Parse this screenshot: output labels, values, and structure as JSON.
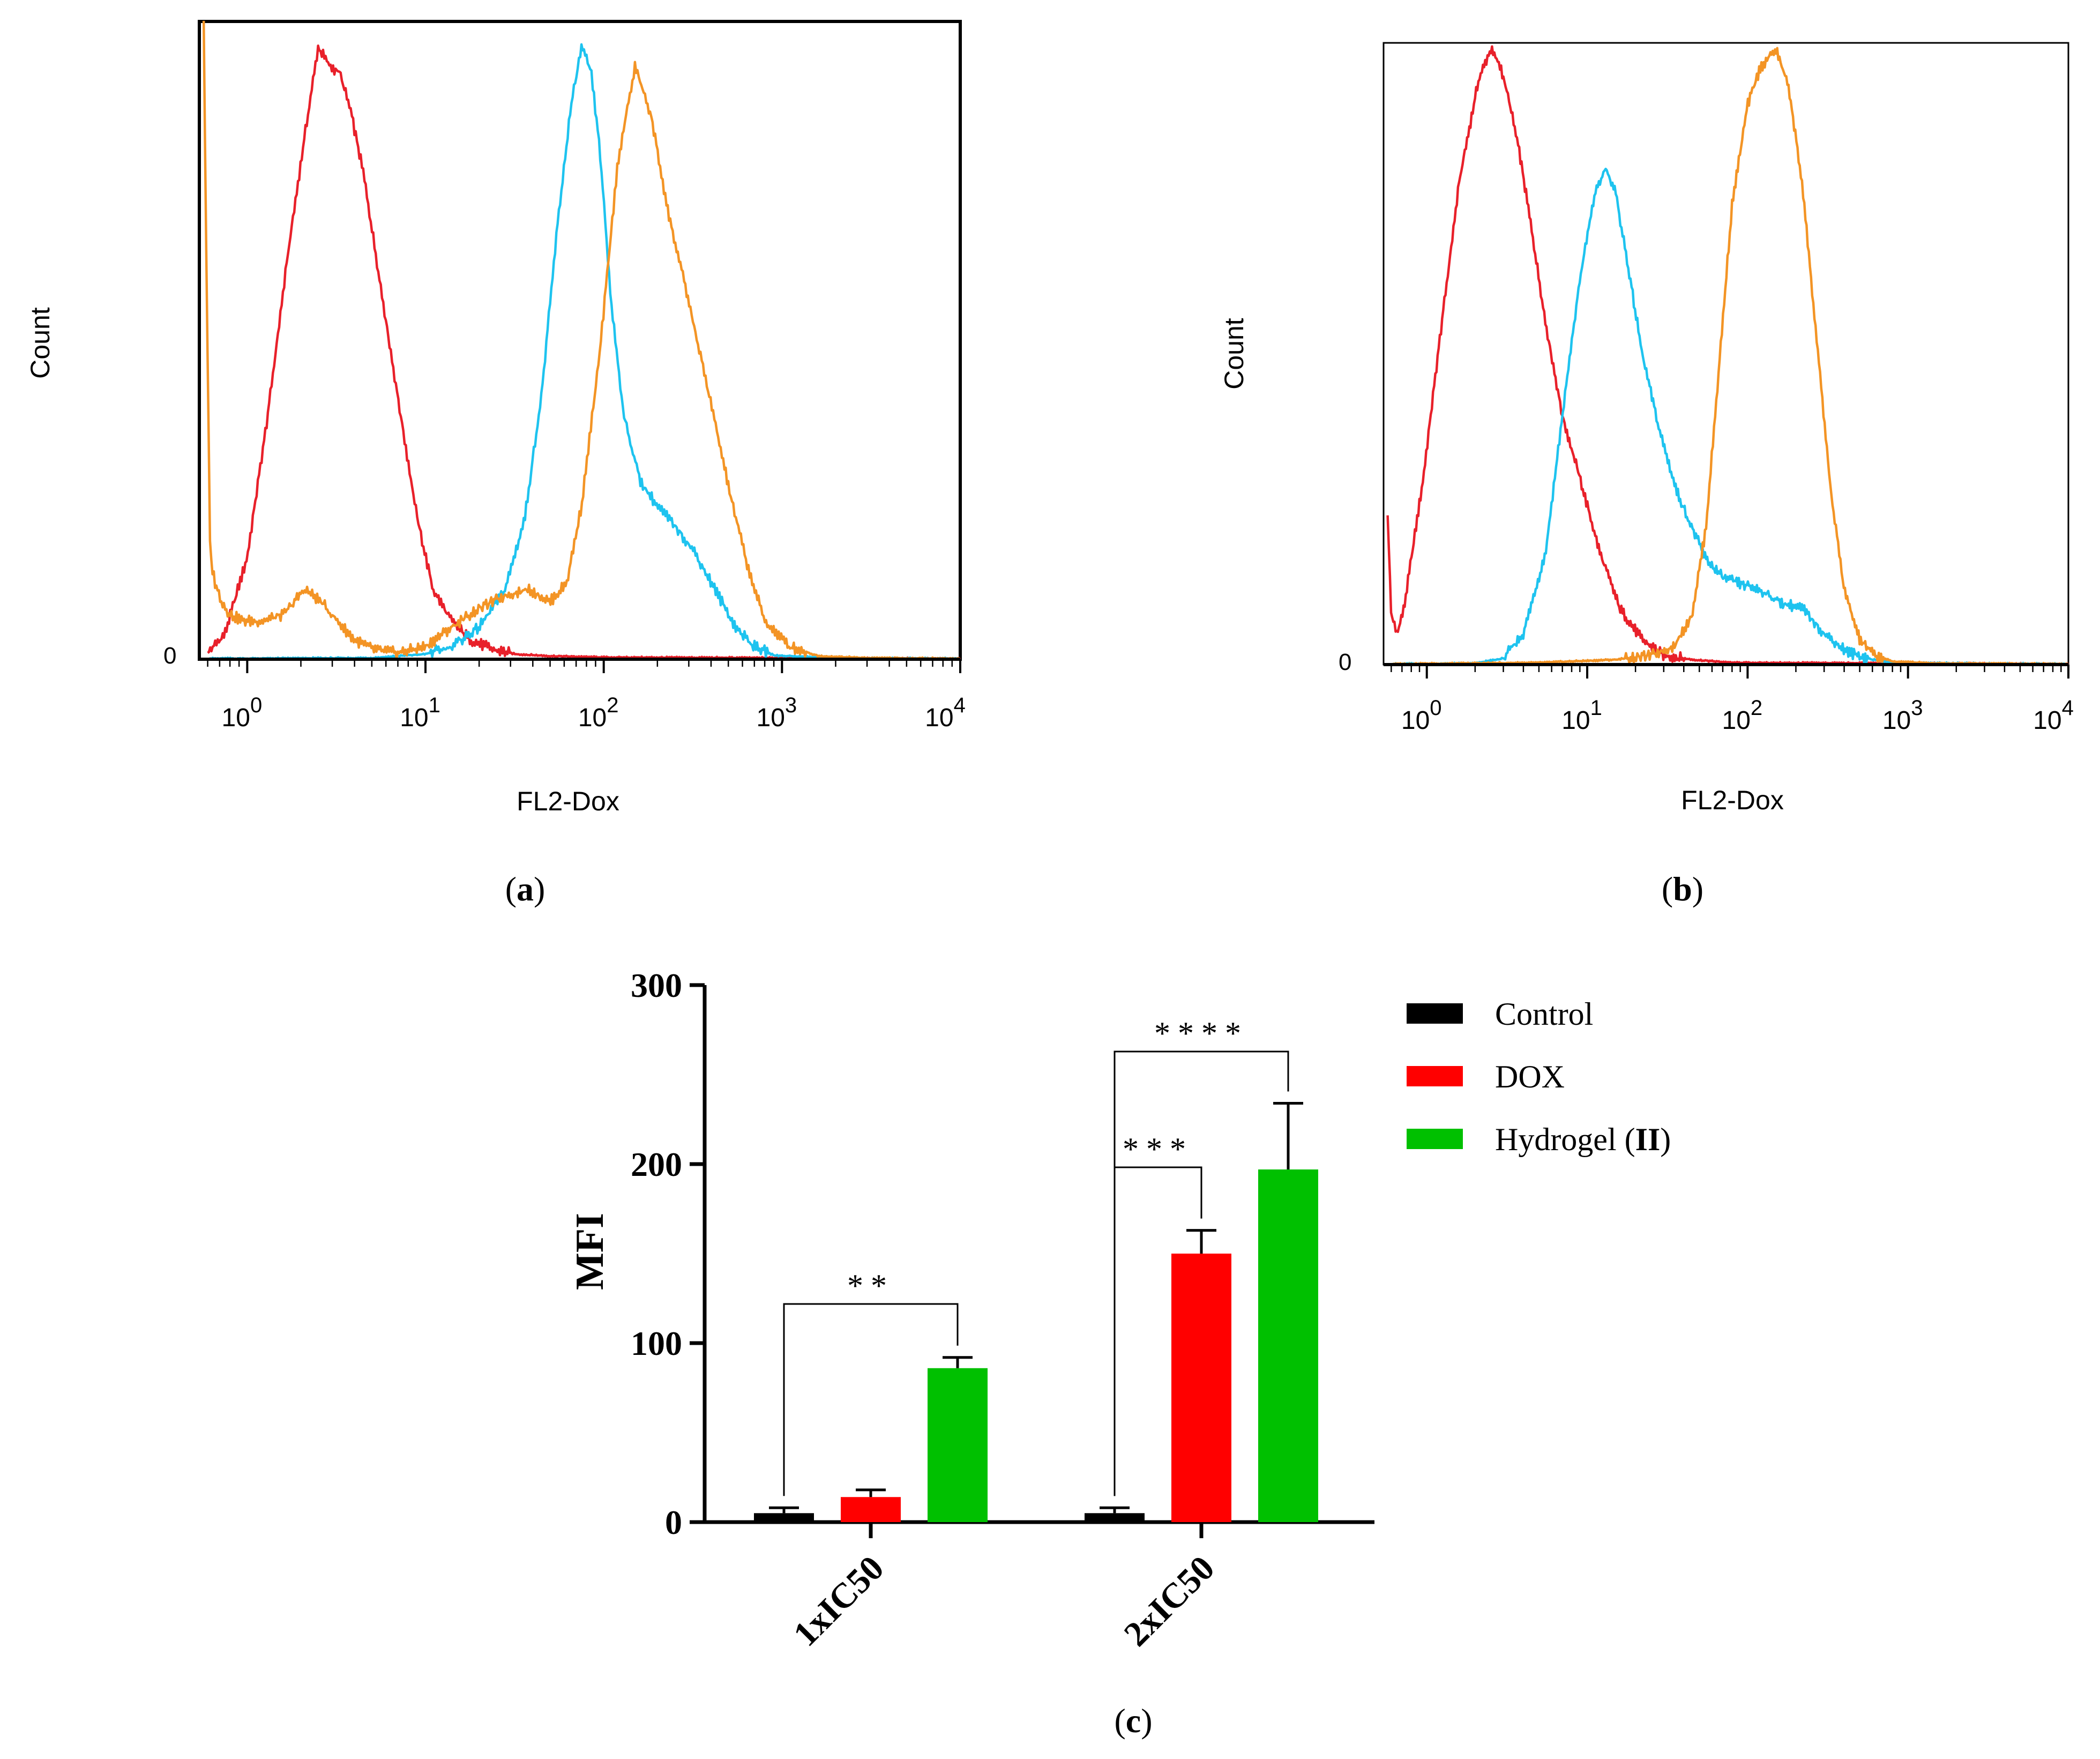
{
  "colors": {
    "control_hist": "#e8202a",
    "dox_hist": "#1ec3ef",
    "hydrogel_hist": "#f39425",
    "bar_control": "#000000",
    "bar_dox": "#ff0000",
    "bar_hydrogel": "#00c000"
  },
  "chart_data": [
    {
      "panel": "a",
      "panel_label": "(a)",
      "panel_letter": "a",
      "type": "line",
      "title": "",
      "xlabel": "FL2-Dox",
      "ylabel": "Count",
      "x_scale": "log",
      "xlim": [
        0.55,
        10000
      ],
      "ylim": [
        0,
        100
      ],
      "x_ticks": [
        {
          "base": "10",
          "exp": "0",
          "value": 1
        },
        {
          "base": "10",
          "exp": "1",
          "value": 10
        },
        {
          "base": "10",
          "exp": "2",
          "value": 100
        },
        {
          "base": "10",
          "exp": "3",
          "value": 1000
        },
        {
          "base": "10",
          "exp": "4",
          "value": 10000
        }
      ],
      "y_tick_label": "0",
      "series": [
        {
          "name": "Control",
          "color": "#e8202a",
          "x": [
            0.6,
            0.75,
            1.0,
            1.3,
            1.7,
            2.1,
            2.5,
            2.9,
            3.3,
            3.8,
            4.5,
            5.5,
            7,
            9,
            11,
            14,
            18,
            24,
            32,
            50,
            100,
            1000,
            10000
          ],
          "y": [
            1,
            4,
            16,
            38,
            64,
            82,
            96,
            93,
            92,
            86,
            76,
            60,
            41,
            22,
            11,
            6,
            3,
            1.5,
            0.8,
            0.5,
            0.3,
            0.2,
            0.1
          ]
        },
        {
          "name": "DOX",
          "color": "#1ec3ef",
          "x": [
            0.6,
            5,
            10,
            14,
            20,
            28,
            36,
            45,
            55,
            65,
            75,
            85,
            95,
            110,
            130,
            160,
            200,
            250,
            320,
            420,
            550,
            700,
            900,
            2000,
            10000
          ],
          "y": [
            0.1,
            0.2,
            0.8,
            2,
            5,
            11,
            22,
            42,
            68,
            86,
            96,
            92,
            80,
            56,
            38,
            28,
            24,
            21,
            17,
            11,
            5,
            2,
            0.6,
            0.2,
            0.1
          ]
        },
        {
          "name": "Hydrogel (II)",
          "color": "#f39425",
          "x": [
            0.57,
            0.59,
            0.62,
            0.66,
            0.72,
            0.8,
            0.95,
            1.2,
            1.6,
            2.1,
            2.6,
            3.2,
            4,
            5.2,
            7,
            10,
            14,
            20,
            28,
            38,
            50,
            62,
            75,
            95,
            120,
            150,
            185,
            230,
            300,
            400,
            520,
            650,
            800,
            1100,
            1600,
            3000,
            10000
          ],
          "y": [
            100,
            62,
            16,
            12,
            9,
            7,
            6,
            6,
            7,
            11,
            9,
            6,
            3,
            1.5,
            1,
            2,
            5,
            8,
            10,
            11,
            9,
            12,
            24,
            48,
            78,
            93,
            85,
            70,
            56,
            40,
            25,
            14,
            6,
            2,
            0.5,
            0.2,
            0.1
          ]
        }
      ]
    },
    {
      "panel": "b",
      "panel_label": "(b)",
      "panel_letter": "b",
      "type": "line",
      "title": "",
      "xlabel": "FL2-Dox",
      "ylabel": "Count",
      "x_scale": "log",
      "xlim": [
        0.55,
        10000
      ],
      "ylim": [
        0,
        100
      ],
      "x_ticks": [
        {
          "base": "10",
          "exp": "0",
          "value": 1
        },
        {
          "base": "10",
          "exp": "1",
          "value": 10
        },
        {
          "base": "10",
          "exp": "2",
          "value": 100
        },
        {
          "base": "10",
          "exp": "3",
          "value": 1000
        },
        {
          "base": "10",
          "exp": "4",
          "value": 10000
        }
      ],
      "y_tick_label": "0",
      "series": [
        {
          "name": "Control",
          "color": "#e8202a",
          "x": [
            0.57,
            0.6,
            0.65,
            0.72,
            0.8,
            0.95,
            1.2,
            1.6,
            2.1,
            2.5,
            2.9,
            3.3,
            3.8,
            4.5,
            5.5,
            7,
            9,
            12,
            16,
            22,
            30,
            45,
            80,
            1000,
            10000
          ],
          "y": [
            24,
            8,
            5,
            9,
            17,
            30,
            52,
            78,
            94,
            99,
            96,
            90,
            82,
            70,
            55,
            40,
            30,
            18,
            9,
            4,
            1.5,
            0.8,
            0.3,
            0.2,
            0.1
          ]
        },
        {
          "name": "DOX",
          "color": "#1ec3ef",
          "x": [
            0.6,
            2,
            3,
            4,
            5.5,
            7,
            9,
            11,
            13,
            15,
            18,
            22,
            28,
            36,
            45,
            55,
            70,
            90,
            120,
            160,
            220,
            300,
            420,
            600,
            800,
            2000,
            10000
          ],
          "y": [
            0.1,
            0.2,
            1,
            5,
            18,
            40,
            62,
            75,
            80,
            76,
            64,
            50,
            38,
            28,
            22,
            17,
            14,
            13,
            12,
            10,
            9,
            5,
            2,
            0.8,
            0.3,
            0.2,
            0.1
          ]
        },
        {
          "name": "Hydrogel (II)",
          "color": "#f39425",
          "x": [
            0.6,
            5,
            15,
            25,
            35,
            45,
            55,
            65,
            80,
            100,
            120,
            150,
            180,
            220,
            270,
            330,
            400,
            500,
            620,
            800,
            1500,
            10000
          ],
          "y": [
            0.1,
            0.3,
            0.8,
            1.5,
            3,
            8,
            22,
            45,
            74,
            90,
            96,
            99,
            93,
            77,
            52,
            28,
            12,
            4,
            1.5,
            0.5,
            0.2,
            0.1
          ]
        }
      ]
    },
    {
      "panel": "c",
      "panel_label": "(c)",
      "panel_letter": "c",
      "type": "bar",
      "title": "",
      "xlabel": "",
      "ylabel": "MFI",
      "ylim": [
        0,
        300
      ],
      "y_ticks": [
        0,
        100,
        200,
        300
      ],
      "categories": [
        "1xIC50",
        "2xIC50"
      ],
      "series": [
        {
          "name": "Control",
          "color": "#000000",
          "values": [
            5,
            5
          ],
          "errors": [
            3,
            3
          ]
        },
        {
          "name": "DOX",
          "color": "#ff0000",
          "values": [
            14,
            150
          ],
          "errors": [
            4,
            13
          ]
        },
        {
          "name": "Hydrogel (II)",
          "color": "#00c000",
          "values": [
            86,
            197
          ],
          "errors": [
            6,
            37
          ]
        }
      ],
      "legend": [
        {
          "label": "Control",
          "color": "#000000"
        },
        {
          "label": "DOX",
          "color": "#ff0000"
        },
        {
          "label": "Hydrogel (",
          "bold": "II",
          "suffix": ")",
          "color": "#00c000"
        }
      ],
      "legend_position": "right",
      "significance": [
        {
          "label": "**",
          "category": 0,
          "from_series": 0,
          "to_series": 2
        },
        {
          "label": "***",
          "category": 1,
          "from_series": 0,
          "to_series": 1
        },
        {
          "label": "****",
          "category": 1,
          "from_series": 0,
          "to_series": 2
        }
      ]
    }
  ]
}
